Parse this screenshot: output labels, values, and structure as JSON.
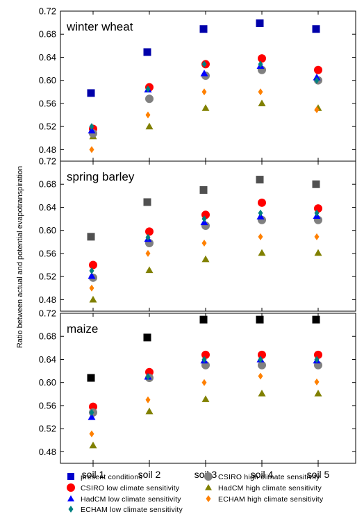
{
  "chart_data": {
    "type": "scatter",
    "ylabel": "Ratio between actual and potential evapotranspiration",
    "categories": [
      "soil 1",
      "soil 2",
      "soil 3",
      "soil 4",
      "soil 5"
    ],
    "ylim": [
      0.46,
      0.72
    ],
    "yticks": [
      "0.48",
      "0.52",
      "0.56",
      "0.60",
      "0.64",
      "0.68",
      "0.72"
    ],
    "legend": [
      {
        "label": "present conditions",
        "marker": "square",
        "color_key": "present"
      },
      {
        "label": "CSIRO high climate sensitivity",
        "marker": "circle",
        "color_key": "csiro_high"
      },
      {
        "label": "CSIRO low climate sensitivity",
        "marker": "circle",
        "color_key": "csiro_low"
      },
      {
        "label": "HadCM high climate sensitivity",
        "marker": "triangle",
        "color_key": "hadcm_high"
      },
      {
        "label": "HadCM low climate sensitivity",
        "marker": "triangle",
        "color_key": "hadcm_low"
      },
      {
        "label": "ECHAM high climate sensitivity",
        "marker": "diamond",
        "color_key": "echam_high"
      },
      {
        "label": "ECHAM low climate sensitivity",
        "marker": "diamond",
        "color_key": "echam_low"
      }
    ],
    "colors": {
      "csiro_high": "#808080",
      "csiro_low": "#ff0000",
      "hadcm_high": "#808000",
      "hadcm_low": "#0000ff",
      "echam_high": "#ff8000",
      "echam_low": "#008080"
    },
    "panels": [
      {
        "title": "winter wheat",
        "present_color": "#0000aa",
        "series": {
          "present": [
            0.578,
            0.649,
            0.689,
            0.699,
            0.689
          ],
          "csiro_high": [
            0.508,
            0.568,
            0.608,
            0.618,
            0.6
          ],
          "csiro_low": [
            0.516,
            0.588,
            0.628,
            0.638,
            0.618
          ],
          "hadcm_high": [
            0.503,
            0.52,
            0.552,
            0.56,
            0.552
          ],
          "hadcm_low": [
            0.513,
            0.584,
            0.612,
            0.625,
            0.605
          ],
          "echam_high": [
            0.48,
            0.54,
            0.58,
            0.58,
            0.549
          ],
          "echam_low": [
            0.52,
            0.585,
            0.628,
            0.628,
            0.6
          ]
        }
      },
      {
        "title": "spring barley",
        "present_color": "#505050",
        "series": {
          "present": [
            0.589,
            0.649,
            0.67,
            0.688,
            0.68
          ],
          "csiro_high": [
            0.518,
            0.578,
            0.608,
            0.618,
            0.618
          ],
          "csiro_low": [
            0.54,
            0.598,
            0.627,
            0.648,
            0.638
          ],
          "hadcm_high": [
            0.48,
            0.531,
            0.55,
            0.561,
            0.561
          ],
          "hadcm_low": [
            0.521,
            0.585,
            0.614,
            0.624,
            0.625
          ],
          "echam_high": [
            0.5,
            0.56,
            0.578,
            0.589,
            0.589
          ],
          "echam_low": [
            0.53,
            0.588,
            0.62,
            0.63,
            0.63
          ]
        }
      },
      {
        "title": "maize",
        "present_color": "#000000",
        "series": {
          "present": [
            0.608,
            0.678,
            0.709,
            0.709,
            0.709
          ],
          "csiro_high": [
            0.548,
            0.608,
            0.63,
            0.63,
            0.63
          ],
          "csiro_low": [
            0.558,
            0.618,
            0.648,
            0.648,
            0.648
          ],
          "hadcm_high": [
            0.491,
            0.55,
            0.571,
            0.581,
            0.581
          ],
          "hadcm_low": [
            0.54,
            0.61,
            0.638,
            0.64,
            0.638
          ],
          "echam_high": [
            0.511,
            0.57,
            0.6,
            0.611,
            0.601
          ],
          "echam_low": [
            0.548,
            0.61,
            0.64,
            0.64,
            0.64
          ]
        }
      }
    ]
  }
}
